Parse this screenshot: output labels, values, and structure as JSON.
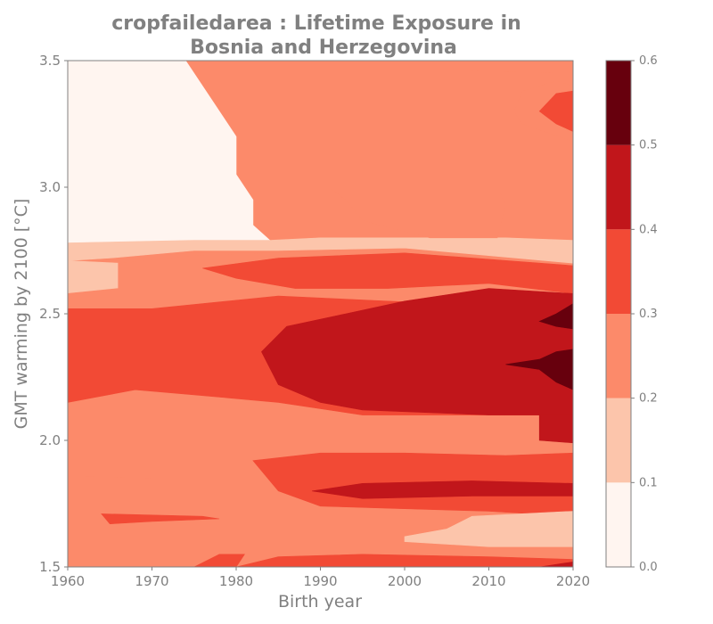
{
  "chart_data": {
    "type": "heatmap",
    "title_lines": [
      "cropfailedarea : Lifetime Exposure in",
      "Bosnia and Herzegovina"
    ],
    "xlabel": "Birth year",
    "ylabel": "GMT warming by 2100 [°C]",
    "xlim": [
      1960,
      2020
    ],
    "ylim": [
      1.5,
      3.5
    ],
    "x_ticks": [
      1960,
      1970,
      1980,
      1990,
      2000,
      2010,
      2020
    ],
    "y_ticks": [
      1.5,
      2.0,
      2.5,
      3.0,
      3.5
    ],
    "colorbar": {
      "levels": [
        0.0,
        0.1,
        0.2,
        0.3,
        0.4,
        0.5,
        0.6
      ],
      "tick_labels": [
        "0.0",
        "0.1",
        "0.2",
        "0.3",
        "0.4",
        "0.5",
        "0.6"
      ],
      "colors": [
        "#fff5f0",
        "#fcc5ab",
        "#fc8a6a",
        "#f24a35",
        "#c1161b",
        "#67000d"
      ]
    },
    "regions": [
      {
        "level": 0,
        "points": [
          [
            1960,
            3.5
          ],
          [
            1974,
            3.5
          ],
          [
            1976,
            3.4
          ],
          [
            1978,
            3.3
          ],
          [
            1980,
            3.2
          ],
          [
            1980,
            3.05
          ],
          [
            1982,
            2.95
          ],
          [
            1982,
            2.85
          ],
          [
            1984,
            2.79
          ],
          [
            1975,
            2.79
          ],
          [
            1960,
            2.78
          ]
        ]
      },
      {
        "level": 1,
        "points": [
          [
            1960,
            2.78
          ],
          [
            1975,
            2.79
          ],
          [
            1984,
            2.79
          ],
          [
            1990,
            2.8
          ],
          [
            2000,
            2.8
          ],
          [
            2012,
            2.8
          ],
          [
            2020,
            2.79
          ],
          [
            2020,
            2.7
          ],
          [
            2000,
            2.76
          ],
          [
            1985,
            2.75
          ],
          [
            1975,
            2.75
          ],
          [
            1965,
            2.72
          ],
          [
            1960,
            2.71
          ]
        ]
      },
      {
        "level": 1,
        "points": [
          [
            1960,
            2.71
          ],
          [
            1966,
            2.7
          ],
          [
            1966,
            2.6
          ],
          [
            1960,
            2.58
          ]
        ]
      },
      {
        "level": 2,
        "points": [
          [
            1991,
            3.0
          ],
          [
            2004,
            3.0
          ],
          [
            2011,
            3.0
          ],
          [
            2012,
            2.93
          ],
          [
            2011,
            2.8
          ],
          [
            2003,
            2.8
          ],
          [
            1997,
            2.85
          ],
          [
            1995,
            2.87
          ],
          [
            1993,
            2.95
          ]
        ]
      },
      {
        "level": 2,
        "points": [
          [
            2008,
            3.5
          ],
          [
            2020,
            3.5
          ],
          [
            2020,
            3.45
          ],
          [
            2008,
            3.46
          ]
        ]
      },
      {
        "level": 2,
        "points": [
          [
            2013,
            3.3
          ],
          [
            2014,
            3.25
          ],
          [
            2020,
            3.18
          ],
          [
            2020,
            3.4
          ],
          [
            2018,
            3.42
          ],
          [
            2014,
            3.38
          ]
        ]
      },
      {
        "level": 3,
        "points": [
          [
            2016,
            3.3
          ],
          [
            2018,
            3.25
          ],
          [
            2020,
            3.22
          ],
          [
            2020,
            3.38
          ],
          [
            2018,
            3.37
          ]
        ]
      },
      {
        "level": 2,
        "points": [
          [
            1960,
            2.58
          ],
          [
            1966,
            2.6
          ],
          [
            1966,
            2.7
          ],
          [
            1975,
            2.73
          ],
          [
            1985,
            2.74
          ],
          [
            2000,
            2.75
          ],
          [
            2020,
            2.69
          ],
          [
            2020,
            2.52
          ],
          [
            1998,
            2.55
          ],
          [
            1985,
            2.57
          ],
          [
            1970,
            2.52
          ],
          [
            1960,
            2.52
          ]
        ]
      },
      {
        "level": 3,
        "points": [
          [
            1976,
            2.68
          ],
          [
            1985,
            2.72
          ],
          [
            2000,
            2.74
          ],
          [
            2020,
            2.69
          ],
          [
            2020,
            2.58
          ],
          [
            2010,
            2.62
          ],
          [
            1998,
            2.6
          ],
          [
            1987,
            2.6
          ],
          [
            1980,
            2.64
          ]
        ]
      },
      {
        "level": 2,
        "points": [
          [
            1960,
            2.15
          ],
          [
            1968,
            2.2
          ],
          [
            1975,
            2.18
          ],
          [
            1985,
            2.15
          ],
          [
            1995,
            2.1
          ],
          [
            2010,
            2.1
          ],
          [
            2020,
            2.08
          ],
          [
            2020,
            1.95
          ],
          [
            2010,
            1.9
          ],
          [
            1995,
            1.88
          ],
          [
            1985,
            1.85
          ],
          [
            1970,
            1.85
          ],
          [
            1960,
            1.86
          ]
        ]
      },
      {
        "level": 3,
        "points": [
          [
            1960,
            2.52
          ],
          [
            1970,
            2.52
          ],
          [
            1985,
            2.57
          ],
          [
            1998,
            2.55
          ],
          [
            2020,
            2.52
          ],
          [
            2020,
            2.1
          ],
          [
            2010,
            2.1
          ],
          [
            1995,
            2.1
          ],
          [
            1985,
            2.15
          ],
          [
            1975,
            2.18
          ],
          [
            1968,
            2.2
          ],
          [
            1960,
            2.15
          ]
        ]
      },
      {
        "level": 4,
        "points": [
          [
            1983,
            2.35
          ],
          [
            1986,
            2.45
          ],
          [
            1993,
            2.5
          ],
          [
            2000,
            2.55
          ],
          [
            2010,
            2.6
          ],
          [
            2020,
            2.58
          ],
          [
            2020,
            2.1
          ],
          [
            2010,
            2.1
          ],
          [
            1995,
            2.12
          ],
          [
            1990,
            2.15
          ],
          [
            1985,
            2.22
          ]
        ]
      },
      {
        "level": 5,
        "points": [
          [
            2016,
            2.47
          ],
          [
            2018,
            2.5
          ],
          [
            2020,
            2.54
          ],
          [
            2020,
            2.44
          ],
          [
            2018,
            2.45
          ]
        ]
      },
      {
        "level": 5,
        "points": [
          [
            2012,
            2.3
          ],
          [
            2016,
            2.32
          ],
          [
            2018,
            2.35
          ],
          [
            2020,
            2.36
          ],
          [
            2020,
            2.2
          ],
          [
            2018,
            2.23
          ],
          [
            2016,
            2.28
          ]
        ]
      },
      {
        "level": 4,
        "points": [
          [
            2016,
            2.1
          ],
          [
            2020,
            2.1
          ],
          [
            2020,
            1.99
          ],
          [
            2016,
            2.0
          ]
        ]
      },
      {
        "level": 3,
        "points": [
          [
            1982,
            1.92
          ],
          [
            1990,
            1.95
          ],
          [
            2000,
            1.95
          ],
          [
            2012,
            1.94
          ],
          [
            2020,
            1.95
          ],
          [
            2020,
            1.7
          ],
          [
            2010,
            1.72
          ],
          [
            2000,
            1.73
          ],
          [
            1990,
            1.74
          ],
          [
            1985,
            1.8
          ]
        ]
      },
      {
        "level": 4,
        "points": [
          [
            1989,
            1.8
          ],
          [
            1995,
            1.83
          ],
          [
            2008,
            1.84
          ],
          [
            2020,
            1.83
          ],
          [
            2020,
            1.78
          ],
          [
            2008,
            1.78
          ],
          [
            1995,
            1.77
          ]
        ]
      },
      {
        "level": 3,
        "points": [
          [
            1964,
            1.71
          ],
          [
            1976,
            1.7
          ],
          [
            1978,
            1.69
          ],
          [
            1970,
            1.68
          ],
          [
            1965,
            1.67
          ]
        ]
      },
      {
        "level": 1,
        "points": [
          [
            2000,
            1.62
          ],
          [
            2005,
            1.65
          ],
          [
            2008,
            1.7
          ],
          [
            2020,
            1.72
          ],
          [
            2020,
            1.58
          ],
          [
            2010,
            1.58
          ],
          [
            2000,
            1.6
          ]
        ]
      },
      {
        "level": 3,
        "points": [
          [
            1975,
            1.5
          ],
          [
            1980,
            1.5
          ],
          [
            1981,
            1.55
          ],
          [
            1978,
            1.55
          ]
        ]
      },
      {
        "level": 3,
        "points": [
          [
            1980,
            1.5
          ],
          [
            2020,
            1.5
          ],
          [
            2020,
            1.53
          ],
          [
            2010,
            1.54
          ],
          [
            1995,
            1.55
          ],
          [
            1985,
            1.54
          ]
        ]
      },
      {
        "level": 4,
        "points": [
          [
            2016,
            1.5
          ],
          [
            2020,
            1.5
          ],
          [
            2020,
            1.52
          ]
        ]
      }
    ]
  }
}
